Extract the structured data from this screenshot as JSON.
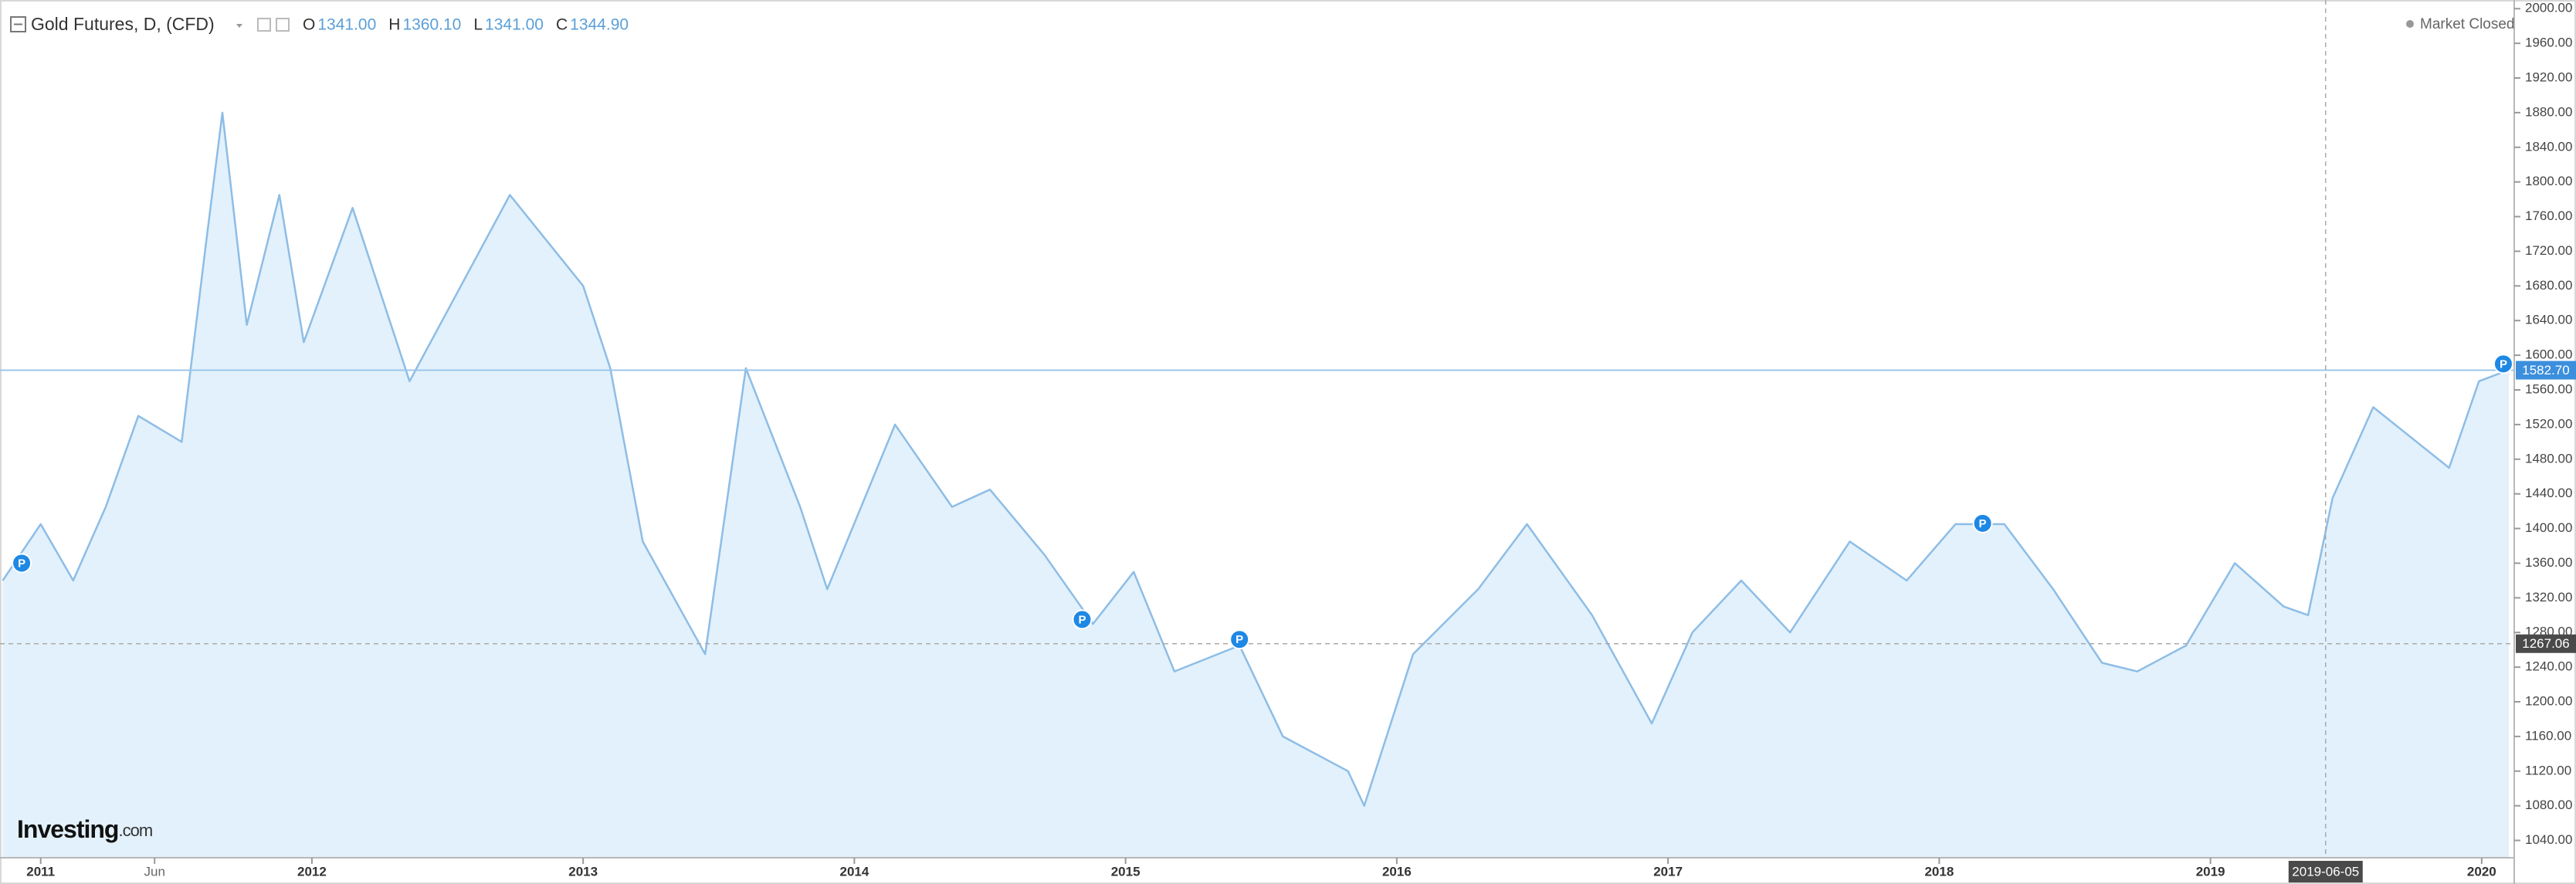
{
  "chart_data": {
    "type": "area",
    "title": "Gold Futures, D, (CFD)",
    "ohlc": [
      {
        "key": "O",
        "value": "1341.00"
      },
      {
        "key": "H",
        "value": "1360.10"
      },
      {
        "key": "L",
        "value": "1341.00"
      },
      {
        "key": "C",
        "value": "1344.90"
      }
    ],
    "status": "Market Closed",
    "logo": "Investing",
    "logo_suffix": ".com",
    "color": "#8dbde6",
    "fill": "#e2f1fb",
    "x": [
      2010.86,
      2011.0,
      2011.12,
      2011.24,
      2011.36,
      2011.52,
      2011.61,
      2011.67,
      2011.76,
      2011.88,
      2011.97,
      2012.15,
      2012.36,
      2012.73,
      2013.0,
      2013.1,
      2013.22,
      2013.45,
      2013.6,
      2013.8,
      2013.9,
      2014.15,
      2014.36,
      2014.5,
      2014.7,
      2014.88,
      2015.03,
      2015.18,
      2015.42,
      2015.58,
      2015.82,
      2015.88,
      2016.06,
      2016.3,
      2016.48,
      2016.72,
      2016.94,
      2017.09,
      2017.27,
      2017.45,
      2017.67,
      2017.88,
      2018.06,
      2018.24,
      2018.42,
      2018.6,
      2018.73,
      2018.91,
      2019.09,
      2019.27,
      2019.36,
      2019.45,
      2019.6,
      2019.76,
      2019.88,
      2019.99,
      2020.1
    ],
    "values": [
      1340,
      1405,
      1340,
      1425,
      1530,
      1500,
      1730,
      1880,
      1635,
      1785,
      1615,
      1770,
      1570,
      1785,
      1680,
      1585,
      1385,
      1255,
      1585,
      1425,
      1330,
      1520,
      1425,
      1445,
      1370,
      1290,
      1350,
      1235,
      1265,
      1160,
      1120,
      1080,
      1255,
      1330,
      1405,
      1300,
      1175,
      1280,
      1340,
      1280,
      1385,
      1340,
      1405,
      1405,
      1330,
      1245,
      1235,
      1265,
      1360,
      1310,
      1300,
      1435,
      1540,
      1500,
      1470,
      1570,
      1583
    ],
    "xlim": [
      2010.85,
      2020.12
    ],
    "ylim": [
      1020,
      2010
    ],
    "xticks": [
      2011,
      {
        "value": 2011.42,
        "label": "Jun"
      },
      2012,
      2013,
      2014,
      2015,
      2016,
      2017,
      2018,
      2019,
      2020
    ],
    "yticks": [
      {
        "value": 1040,
        "label": "1040.00"
      },
      {
        "value": 1080,
        "label": "1080.00"
      },
      {
        "value": 1120,
        "label": "1120.00"
      },
      {
        "value": 1160,
        "label": "1160.00"
      },
      {
        "value": 1200,
        "label": "1200.00"
      },
      {
        "value": 1240,
        "label": "1240.00"
      },
      {
        "value": 1280,
        "label": "1280.00"
      },
      {
        "value": 1320,
        "label": "1320.00"
      },
      {
        "value": 1360,
        "label": "1360.00"
      },
      {
        "value": 1400,
        "label": "1400.00"
      },
      {
        "value": 1440,
        "label": "1440.00"
      },
      {
        "value": 1480,
        "label": "1480.00"
      },
      {
        "value": 1520,
        "label": "1520.00"
      },
      {
        "value": 1560,
        "label": "1560.00"
      },
      {
        "value": 1600,
        "label": "1600.00"
      },
      {
        "value": 1640,
        "label": "1640.00"
      },
      {
        "value": 1680,
        "label": "1680.00"
      },
      {
        "value": 1720,
        "label": "1720.00"
      },
      {
        "value": 1760,
        "label": "1760.00"
      },
      {
        "value": 1800,
        "label": "1800.00"
      },
      {
        "value": 1840,
        "label": "1840.00"
      },
      {
        "value": 1880,
        "label": "1880.00"
      },
      {
        "value": 1920,
        "label": "1920.00"
      },
      {
        "value": 1960,
        "label": "1960.00"
      },
      {
        "value": 2000,
        "label": "2000.00"
      }
    ],
    "last_price": {
      "value": 1582.7,
      "label": "1582.70"
    },
    "crosshair": {
      "date": "2019-06-05",
      "price": 1267.06
    },
    "events": [
      {
        "label": "P",
        "x": 2010.93,
        "y": 1360
      },
      {
        "label": "P",
        "x": 2014.84,
        "y": 1295
      },
      {
        "label": "P",
        "x": 2015.42,
        "y": 1272
      },
      {
        "label": "P",
        "x": 2018.16,
        "y": 1406
      },
      {
        "label": "P",
        "x": 2020.08,
        "y": 1590
      }
    ]
  }
}
